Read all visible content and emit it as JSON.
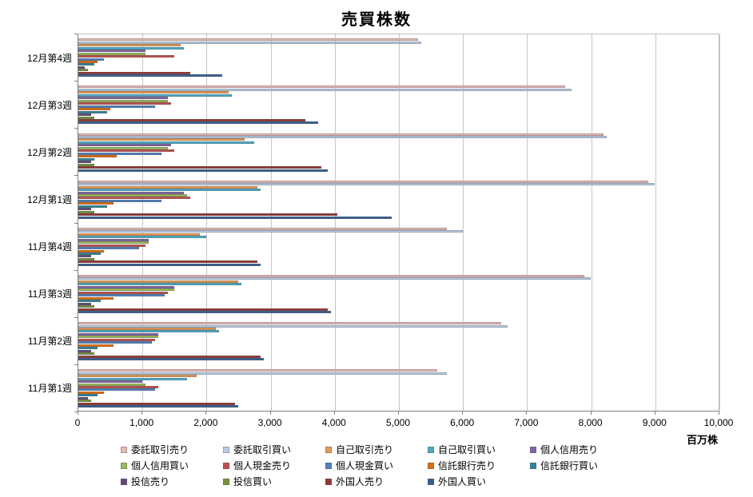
{
  "chart_data": {
    "type": "bar",
    "orientation": "horizontal",
    "title": "売買株数",
    "xlabel": "百万株",
    "ylabel": "",
    "xlim": [
      0,
      10000
    ],
    "grid": true,
    "legend_position": "bottom",
    "xticks": [
      "0",
      "1,000",
      "2,000",
      "3,000",
      "4,000",
      "5,000",
      "6,000",
      "7,000",
      "8,000",
      "9,000",
      "10,000"
    ],
    "categories": [
      "12月第4週",
      "12月第3週",
      "12月第2週",
      "12月第1週",
      "11月第4週",
      "11月第3週",
      "11月第2週",
      "11月第1週"
    ],
    "series": [
      {
        "name": "委託取引売り",
        "color": "#e6b9b8",
        "values": [
          5300,
          7600,
          8200,
          8900,
          5750,
          7900,
          6600,
          5600
        ]
      },
      {
        "name": "委託取引買い",
        "color": "#b8cce4",
        "values": [
          5350,
          7700,
          8250,
          9000,
          6000,
          8000,
          6700,
          5750
        ]
      },
      {
        "name": "自己取引売り",
        "color": "#e89a54",
        "values": [
          1600,
          2350,
          2600,
          2800,
          1900,
          2500,
          2150,
          1850
        ]
      },
      {
        "name": "自己取引買い",
        "color": "#4bacc6",
        "values": [
          1650,
          2400,
          2750,
          2850,
          2000,
          2550,
          2200,
          1700
        ]
      },
      {
        "name": "個人信用売り",
        "color": "#8064a2",
        "values": [
          1050,
          1400,
          1450,
          1650,
          1100,
          1500,
          1250,
          1000
        ]
      },
      {
        "name": "個人信用買い",
        "color": "#9bbb59",
        "values": [
          1050,
          1400,
          1400,
          1700,
          1100,
          1500,
          1250,
          1050
        ]
      },
      {
        "name": "個人現金売り",
        "color": "#c0504d",
        "values": [
          1500,
          1450,
          1500,
          1750,
          1050,
          1400,
          1200,
          1250
        ]
      },
      {
        "name": "個人現金買い",
        "color": "#4f81bd",
        "values": [
          400,
          1200,
          1300,
          1300,
          950,
          1350,
          1150,
          1200
        ]
      },
      {
        "name": "信託銀行売り",
        "color": "#e36c0a",
        "values": [
          300,
          500,
          600,
          550,
          400,
          550,
          550,
          400
        ]
      },
      {
        "name": "信託銀行買い",
        "color": "#31859b",
        "values": [
          250,
          450,
          250,
          450,
          350,
          350,
          300,
          300
        ]
      },
      {
        "name": "投信売り",
        "color": "#60497a",
        "values": [
          100,
          200,
          200,
          200,
          200,
          200,
          200,
          150
        ]
      },
      {
        "name": "投信買い",
        "color": "#76923c",
        "values": [
          150,
          250,
          250,
          250,
          250,
          250,
          250,
          200
        ]
      },
      {
        "name": "外国人売り",
        "color": "#943634",
        "values": [
          1750,
          3550,
          3800,
          4050,
          2800,
          3900,
          2850,
          2450
        ]
      },
      {
        "name": "外国人買い",
        "color": "#365f91",
        "values": [
          2250,
          3750,
          3900,
          4900,
          2850,
          3950,
          2900,
          2500
        ]
      }
    ]
  }
}
